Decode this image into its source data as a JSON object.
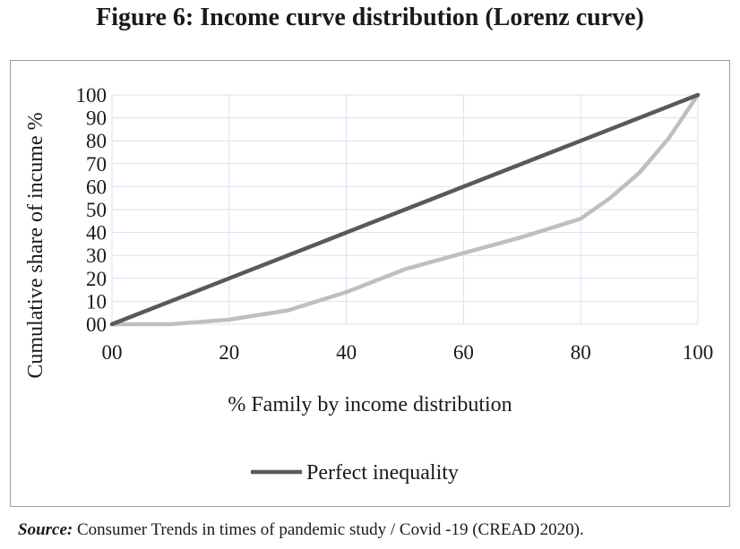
{
  "figure": {
    "title": "Figure 6: Income curve distribution (Lorenz curve)"
  },
  "chart_data": {
    "type": "line",
    "xlabel": "% Family by income distribution",
    "ylabel": "Cumulative share of incume %",
    "xlim": [
      0,
      100
    ],
    "ylim": [
      0,
      100
    ],
    "x_ticks": [
      "00",
      "20",
      "40",
      "60",
      "80",
      "100"
    ],
    "y_ticks": [
      "00",
      "10",
      "20",
      "30",
      "40",
      "50",
      "60",
      "70",
      "80",
      "90",
      "100"
    ],
    "grid": true,
    "legend_position": "bottom",
    "series": [
      {
        "name": "Perfect inequality",
        "color": "#595959",
        "x": [
          0,
          100
        ],
        "y": [
          0,
          100
        ]
      },
      {
        "color": "#bfbfbf",
        "x": [
          0,
          10,
          20,
          30,
          40,
          50,
          60,
          70,
          80,
          85,
          90,
          95,
          100
        ],
        "y": [
          0,
          0,
          2,
          6,
          14,
          24,
          31,
          38,
          46,
          55,
          66,
          81,
          100
        ]
      }
    ]
  },
  "source": {
    "label": "Source:",
    "text": " Consumer Trends in times of pandemic study / Covid -19 (CREAD 2020)."
  }
}
